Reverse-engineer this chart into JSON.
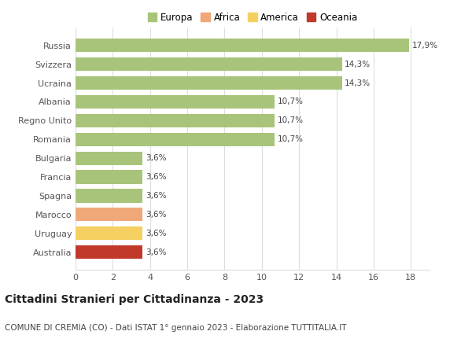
{
  "categories": [
    "Russia",
    "Svizzera",
    "Ucraina",
    "Albania",
    "Regno Unito",
    "Romania",
    "Bulgaria",
    "Francia",
    "Spagna",
    "Marocco",
    "Uruguay",
    "Australia"
  ],
  "values": [
    17.9,
    14.3,
    14.3,
    10.7,
    10.7,
    10.7,
    3.6,
    3.6,
    3.6,
    3.6,
    3.6,
    3.6
  ],
  "labels": [
    "17,9%",
    "14,3%",
    "14,3%",
    "10,7%",
    "10,7%",
    "10,7%",
    "3,6%",
    "3,6%",
    "3,6%",
    "3,6%",
    "3,6%",
    "3,6%"
  ],
  "bar_colors": [
    "#a8c47a",
    "#a8c47a",
    "#a8c47a",
    "#a8c47a",
    "#a8c47a",
    "#a8c47a",
    "#a8c47a",
    "#a8c47a",
    "#a8c47a",
    "#f0a878",
    "#f5d060",
    "#c0392b"
  ],
  "legend_items": [
    {
      "label": "Europa",
      "color": "#a8c47a"
    },
    {
      "label": "Africa",
      "color": "#f0a878"
    },
    {
      "label": "America",
      "color": "#f5d060"
    },
    {
      "label": "Oceania",
      "color": "#c0392b"
    }
  ],
  "xlim": [
    0,
    19
  ],
  "xticks": [
    0,
    2,
    4,
    6,
    8,
    10,
    12,
    14,
    16,
    18
  ],
  "title": "Cittadini Stranieri per Cittadinanza - 2023",
  "subtitle": "COMUNE DI CREMIA (CO) - Dati ISTAT 1° gennaio 2023 - Elaborazione TUTTITALIA.IT",
  "title_fontsize": 10,
  "subtitle_fontsize": 7.5,
  "background_color": "#ffffff",
  "grid_color": "#dddddd",
  "bar_height": 0.72
}
